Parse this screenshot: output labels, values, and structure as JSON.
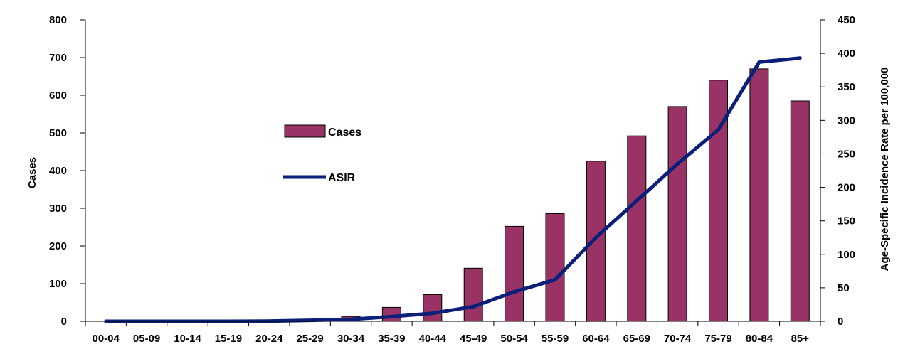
{
  "chart_data": {
    "type": "bar",
    "categories": [
      "00-04",
      "05-09",
      "10-14",
      "15-19",
      "20-24",
      "25-29",
      "30-34",
      "35-39",
      "40-44",
      "45-49",
      "50-54",
      "55-59",
      "60-64",
      "65-69",
      "70-74",
      "75-79",
      "80-84",
      "85+"
    ],
    "series": [
      {
        "name": "Cases",
        "type": "bar",
        "axis": "left",
        "color": "#993366",
        "values": [
          0,
          0,
          0,
          0,
          1,
          3,
          13,
          37,
          71,
          141,
          252,
          286,
          425,
          492,
          570,
          640,
          670,
          585
        ]
      },
      {
        "name": "ASIR",
        "type": "line",
        "axis": "right",
        "color": "#0a1f7a",
        "values": [
          0,
          0,
          0,
          0,
          0.3,
          1.5,
          3,
          7,
          12,
          22,
          44,
          62,
          125,
          180,
          235,
          286,
          387,
          393
        ]
      }
    ],
    "ylabel": "Cases",
    "ylabel_right": "Age-Specific Incidence Rate per 100,000",
    "ylim": [
      0,
      800
    ],
    "yticks": [
      0,
      100,
      200,
      300,
      400,
      500,
      600,
      700,
      800
    ],
    "ylim_right": [
      0,
      450
    ],
    "yticks_right": [
      0,
      50,
      100,
      150,
      200,
      250,
      300,
      350,
      400,
      450
    ],
    "grid": false,
    "legend_position": "center-left"
  }
}
